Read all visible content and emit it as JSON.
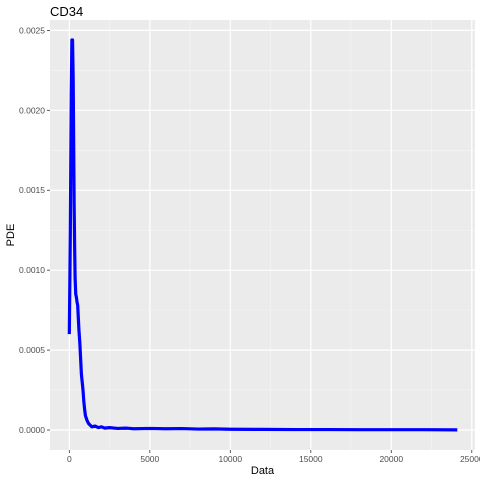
{
  "chart_data": {
    "type": "line",
    "title": "CD34",
    "xlabel": "Data",
    "ylabel": "PDE",
    "xlim": [
      -1200,
      25200
    ],
    "ylim": [
      -0.000125,
      0.002565
    ],
    "x_ticks": [
      0,
      5000,
      10000,
      15000,
      20000,
      25000
    ],
    "x_tick_labels": [
      "0",
      "5000",
      "10000",
      "15000",
      "20000",
      "25000"
    ],
    "y_ticks": [
      0,
      0.0005,
      0.001,
      0.0015,
      0.002,
      0.0025
    ],
    "y_tick_labels": [
      "0.0000",
      "0.0005",
      "0.0010",
      "0.0015",
      "0.0020",
      "0.0025"
    ],
    "grid": true,
    "series": [
      {
        "color": "#0000ff",
        "x": [
          0,
          60,
          120,
          160,
          200,
          240,
          270,
          300,
          330,
          360,
          400,
          440,
          480,
          520,
          560,
          600,
          650,
          700,
          750,
          800,
          850,
          900,
          950,
          1000,
          1100,
          1200,
          1300,
          1400,
          1600,
          1800,
          2000,
          2200,
          2500,
          3000,
          3500,
          4000,
          5000,
          6000,
          7000,
          8000,
          9000,
          10000,
          12000,
          14000,
          16000,
          18000,
          20000,
          22000,
          24100
        ],
        "y": [
          0.0006,
          0.0012,
          0.0021,
          0.00244,
          0.00244,
          0.0022,
          0.0018,
          0.0014,
          0.00115,
          0.00095,
          0.00085,
          0.00083,
          0.0008,
          0.00078,
          0.0007,
          0.00062,
          0.00055,
          0.00045,
          0.00035,
          0.0003,
          0.00025,
          0.00018,
          0.00013,
          9e-05,
          6e-05,
          4e-05,
          3e-05,
          2e-05,
          2.5e-05,
          1.5e-05,
          2e-05,
          1.2e-05,
          1.5e-05,
          1e-05,
          1.2e-05,
          8e-06,
          1e-05,
          8e-06,
          9e-06,
          6e-06,
          7e-06,
          5e-06,
          4e-06,
          3e-06,
          3e-06,
          2e-06,
          2e-06,
          2e-06,
          1e-06
        ]
      }
    ]
  }
}
